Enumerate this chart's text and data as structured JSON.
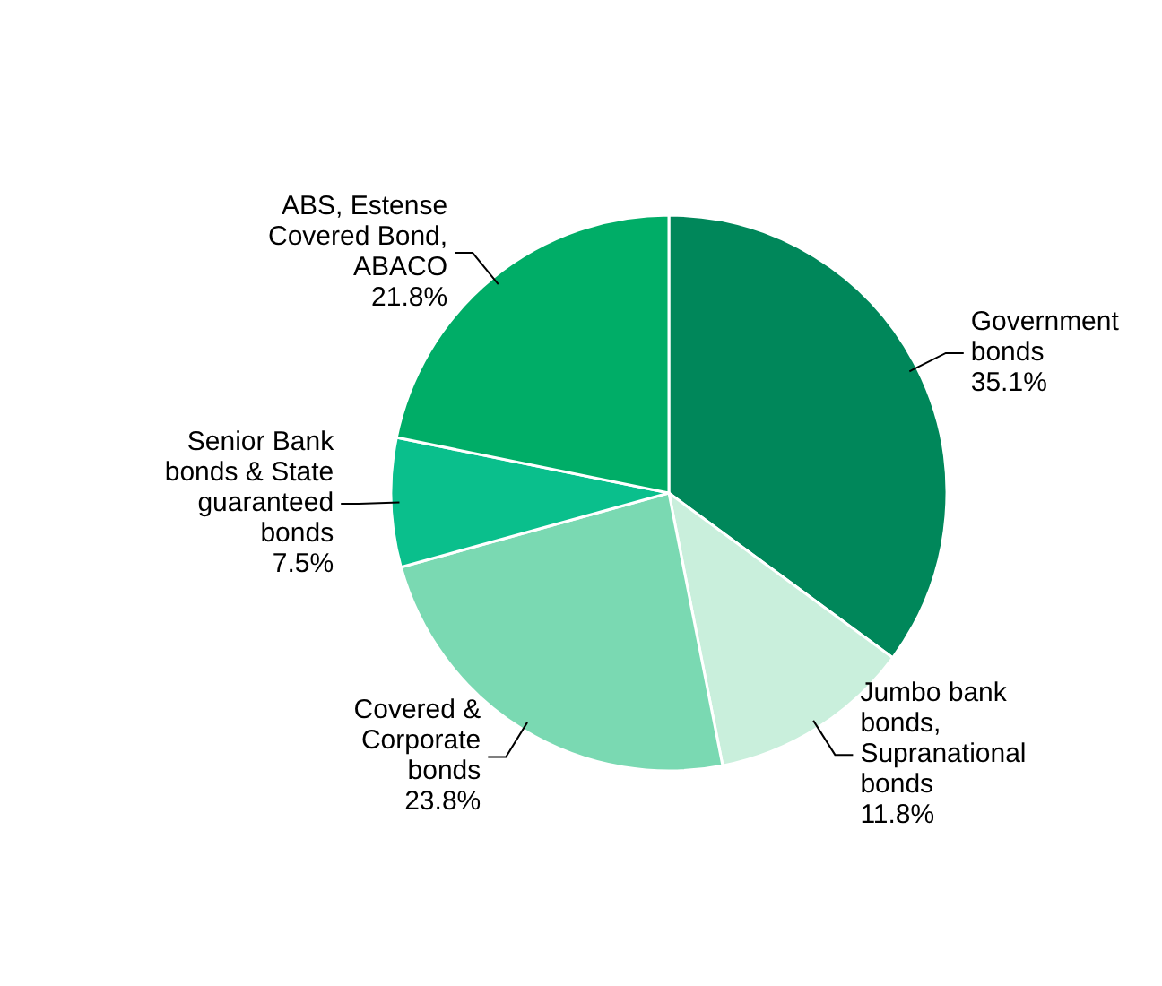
{
  "chart_data": {
    "type": "pie",
    "categories": [
      "Government bonds",
      "Jumbo bank bonds, Supranational bonds",
      "Covered & Corporate bonds",
      "Senior Bank bonds & State guaranteed bonds",
      "ABS, Estense Covered Bond, ABACO"
    ],
    "values": [
      35.1,
      11.8,
      23.8,
      7.5,
      21.8
    ],
    "value_labels": [
      "35.1%",
      "11.8%",
      "23.8%",
      "7.5%",
      "21.8%"
    ],
    "colors": [
      "#00875a",
      "#c9efdc",
      "#7ad9b2",
      "#0abf8c",
      "#00ad67"
    ],
    "legend": false
  }
}
